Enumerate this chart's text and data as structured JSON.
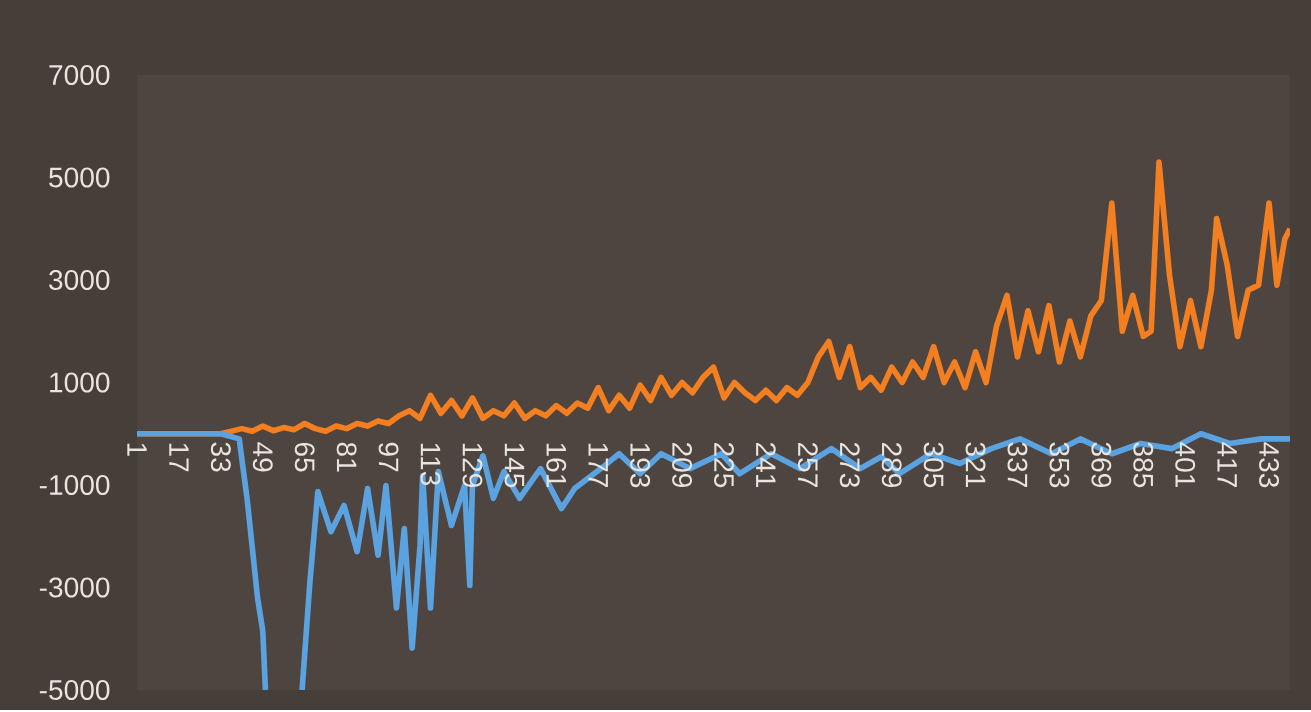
{
  "chart_data": {
    "type": "line",
    "xlim": [
      1,
      441
    ],
    "ylim": [
      -5000,
      7000
    ],
    "xticks": [
      1,
      17,
      33,
      49,
      65,
      81,
      97,
      113,
      129,
      145,
      161,
      177,
      193,
      209,
      225,
      241,
      257,
      273,
      289,
      305,
      321,
      337,
      353,
      369,
      385,
      401,
      417,
      433
    ],
    "yticks": [
      -5000,
      -3000,
      -1000,
      1000,
      3000,
      5000,
      7000
    ],
    "series": [
      {
        "color": "#f47f20",
        "x": [
          1,
          33,
          37,
          41,
          45,
          49,
          53,
          57,
          61,
          65,
          69,
          73,
          77,
          81,
          85,
          89,
          93,
          97,
          101,
          105,
          109,
          113,
          117,
          121,
          125,
          129,
          133,
          137,
          141,
          145,
          149,
          153,
          157,
          161,
          165,
          169,
          173,
          177,
          181,
          185,
          189,
          193,
          197,
          201,
          205,
          209,
          213,
          217,
          221,
          225,
          229,
          233,
          237,
          241,
          245,
          249,
          253,
          257,
          261,
          265,
          269,
          273,
          277,
          281,
          285,
          289,
          293,
          297,
          301,
          305,
          309,
          313,
          317,
          321,
          325,
          329,
          333,
          337,
          341,
          345,
          349,
          353,
          357,
          361,
          365,
          369,
          373,
          377,
          381,
          385,
          388,
          391,
          395,
          399,
          403,
          407,
          411,
          413,
          417,
          421,
          425,
          429,
          433,
          436,
          439,
          441
        ],
        "values": [
          0,
          0,
          50,
          100,
          50,
          150,
          60,
          120,
          80,
          200,
          100,
          50,
          150,
          100,
          200,
          150,
          250,
          200,
          350,
          450,
          300,
          750,
          400,
          650,
          350,
          700,
          300,
          450,
          350,
          600,
          300,
          450,
          350,
          550,
          400,
          600,
          500,
          900,
          450,
          750,
          500,
          950,
          650,
          1100,
          750,
          1000,
          800,
          1100,
          1300,
          700,
          1000,
          800,
          650,
          850,
          650,
          900,
          750,
          1000,
          1500,
          1800,
          1100,
          1700,
          900,
          1100,
          850,
          1300,
          1000,
          1400,
          1100,
          1700,
          1000,
          1400,
          900,
          1600,
          1000,
          2100,
          2700,
          1500,
          2400,
          1600,
          2500,
          1400,
          2200,
          1500,
          2300,
          2600,
          4500,
          2000,
          2700,
          1900,
          2000,
          5300,
          3100,
          1700,
          2600,
          1700,
          2800,
          4200,
          3300,
          1900,
          2800,
          2900,
          4500,
          2900,
          3800,
          4000
        ]
      },
      {
        "color": "#5ba3e0",
        "x": [
          1,
          33,
          40,
          43,
          47,
          49,
          50,
          57,
          64,
          67,
          70,
          75,
          80,
          85,
          89,
          93,
          96,
          100,
          103,
          106,
          109,
          110,
          113,
          116,
          121,
          126,
          128,
          129,
          133,
          137,
          141,
          147,
          155,
          163,
          168,
          178,
          185,
          193,
          201,
          212,
          224,
          231,
          243,
          254,
          266,
          277,
          285,
          292,
          304,
          315,
          327,
          338,
          350,
          361,
          373,
          384,
          396,
          407,
          418,
          430,
          441
        ],
        "values": [
          0,
          0,
          -100,
          -1260,
          -3200,
          -3850,
          -5000,
          null,
          -5000,
          -2880,
          -1130,
          -1910,
          -1400,
          -2300,
          -1070,
          -2370,
          -1010,
          -3400,
          -1850,
          -4180,
          -2180,
          -820,
          -3400,
          -740,
          -1790,
          -1010,
          -2960,
          -1010,
          -430,
          -1260,
          -740,
          -1260,
          -680,
          -1460,
          -1070,
          -680,
          -390,
          -780,
          -390,
          -680,
          -390,
          -780,
          -390,
          -680,
          -290,
          -680,
          -450,
          -780,
          -390,
          -580,
          -290,
          -100,
          -390,
          -100,
          -390,
          -190,
          -290,
          0,
          -190,
          -100,
          -100
        ]
      }
    ]
  }
}
